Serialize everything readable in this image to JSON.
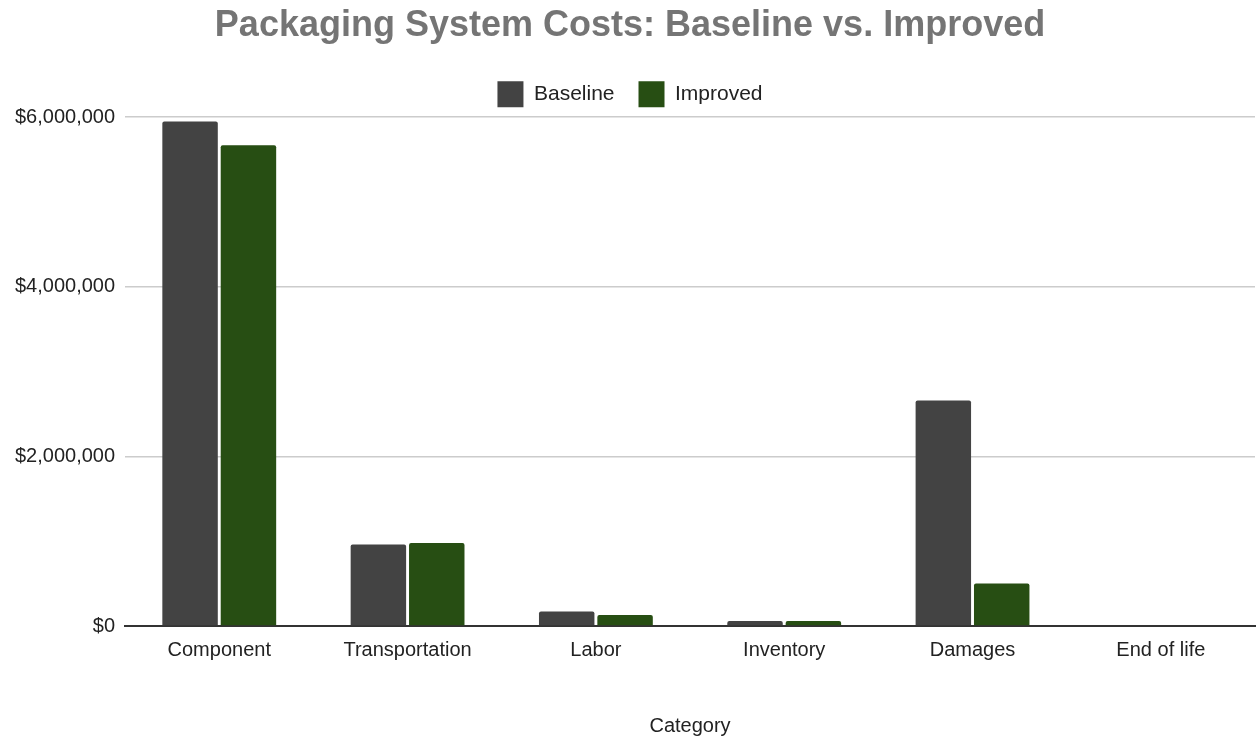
{
  "chart_data": {
    "type": "bar",
    "title": "Packaging System Costs: Baseline vs. Improved",
    "xlabel": "Category",
    "categories": [
      "Component",
      "Transportation",
      "Labor",
      "Inventory",
      "Damages",
      "End of life"
    ],
    "series": [
      {
        "name": "Baseline",
        "color": "#434343",
        "values": [
          5950000,
          960000,
          170000,
          60000,
          2660000,
          0
        ]
      },
      {
        "name": "Improved",
        "color": "#274e13",
        "values": [
          5670000,
          980000,
          130000,
          60000,
          500000,
          0
        ]
      }
    ],
    "ylim": [
      0,
      6000000
    ],
    "yticks": [
      {
        "value": 0,
        "label": "$0"
      },
      {
        "value": 2000000,
        "label": "$2,000,000"
      },
      {
        "value": 4000000,
        "label": "$4,000,000"
      },
      {
        "value": 6000000,
        "label": "$6,000,000"
      }
    ],
    "grid": "y",
    "legend": "top"
  }
}
